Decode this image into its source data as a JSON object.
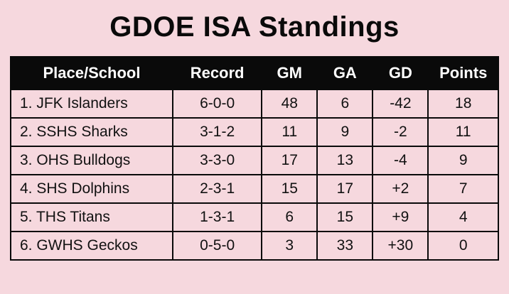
{
  "title": "GDOE ISA Standings",
  "colors": {
    "background": "#f6d8de",
    "header_bg": "#0a0a0a",
    "header_text": "#ffffff",
    "border": "#0a0a0a"
  },
  "table": {
    "headers": [
      "Place/School",
      "Record",
      "GM",
      "GA",
      "GD",
      "Points"
    ],
    "rows": [
      [
        "1. JFK Islanders",
        "6-0-0",
        "48",
        "6",
        "-42",
        "18"
      ],
      [
        "2. SSHS Sharks",
        "3-1-2",
        "11",
        "9",
        "-2",
        "11"
      ],
      [
        "3. OHS Bulldogs",
        "3-3-0",
        "17",
        "13",
        "-4",
        "9"
      ],
      [
        "4. SHS Dolphins",
        "2-3-1",
        "15",
        "17",
        "+2",
        "7"
      ],
      [
        "5. THS Titans",
        "1-3-1",
        "6",
        "15",
        "+9",
        "4"
      ],
      [
        "6. GWHS Geckos",
        "0-5-0",
        "3",
        "33",
        "+30",
        "0"
      ]
    ]
  },
  "chart_data": {
    "type": "table",
    "title": "GDOE ISA Standings",
    "columns": [
      "Place/School",
      "Record",
      "GM",
      "GA",
      "GD",
      "Points"
    ],
    "rows": [
      {
        "place": 1,
        "school": "JFK Islanders",
        "record": "6-0-0",
        "gm": 48,
        "ga": 6,
        "gd": -42,
        "points": 18
      },
      {
        "place": 2,
        "school": "SSHS Sharks",
        "record": "3-1-2",
        "gm": 11,
        "ga": 9,
        "gd": -2,
        "points": 11
      },
      {
        "place": 3,
        "school": "OHS Bulldogs",
        "record": "3-3-0",
        "gm": 17,
        "ga": 13,
        "gd": -4,
        "points": 9
      },
      {
        "place": 4,
        "school": "SHS Dolphins",
        "record": "2-3-1",
        "gm": 15,
        "ga": 17,
        "gd": 2,
        "points": 7
      },
      {
        "place": 5,
        "school": "THS Titans",
        "record": "1-3-1",
        "gm": 6,
        "ga": 15,
        "gd": 9,
        "points": 4
      },
      {
        "place": 6,
        "school": "GWHS Geckos",
        "record": "0-5-0",
        "gm": 3,
        "ga": 33,
        "gd": 30,
        "points": 0
      }
    ]
  }
}
